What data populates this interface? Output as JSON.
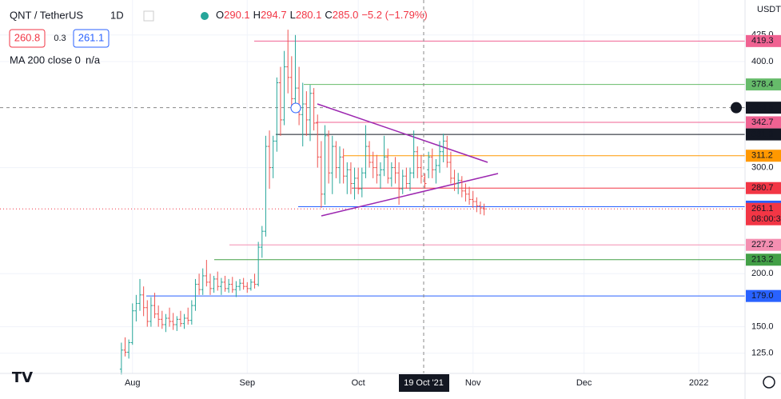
{
  "header": {
    "symbol": "QNT / TetherUS",
    "interval": "1D",
    "ohlc": [
      {
        "label": "O",
        "value": "290.1"
      },
      {
        "label": "H",
        "value": "294.7"
      },
      {
        "label": "L",
        "value": "280.1"
      },
      {
        "label": "C",
        "value": "285.0"
      }
    ],
    "change": "−5.2 (−1.79%)",
    "sell": "260.8",
    "spread": "0.3",
    "buy": "261.1",
    "indicator": "MA 200 close 0",
    "indicator_value": "n/a"
  },
  "chart_data": {
    "type": "ohlc",
    "currency": "USDT",
    "up_color": "#26a69a",
    "down_color": "#ef5350",
    "open": [
      110,
      128,
      126,
      135,
      165,
      172,
      180,
      168,
      155,
      170,
      162,
      157,
      152,
      158,
      155,
      152,
      157,
      153,
      158,
      156,
      170,
      190,
      185,
      198,
      192,
      186,
      195,
      188,
      192,
      186,
      190,
      185,
      188,
      191,
      188,
      186,
      192,
      190,
      225,
      240,
      320,
      300,
      325,
      380,
      345,
      395,
      385,
      365,
      375,
      350,
      360,
      345,
      370,
      342,
      310,
      275,
      330,
      295,
      320,
      300,
      310,
      292,
      298,
      285,
      290,
      280,
      295,
      320,
      305,
      300,
      293,
      298,
      310,
      290,
      300,
      295,
      280,
      292,
      285,
      295,
      315,
      300,
      290.1,
      298,
      310,
      298,
      302,
      315,
      325,
      305,
      290,
      285,
      288,
      278,
      275,
      270,
      268,
      264,
      262
    ],
    "high": [
      135,
      140,
      138,
      172,
      180,
      195,
      188,
      175,
      178,
      182,
      170,
      165,
      162,
      168,
      163,
      160,
      165,
      162,
      168,
      175,
      195,
      200,
      205,
      213,
      200,
      198,
      202,
      196,
      198,
      195,
      197,
      193,
      195,
      196,
      192,
      195,
      200,
      230,
      245,
      330,
      335,
      330,
      385,
      395,
      410,
      430,
      405,
      425,
      395,
      380,
      372,
      378,
      375,
      350,
      325,
      340,
      335,
      330,
      325,
      320,
      318,
      305,
      305,
      300,
      300,
      300,
      340,
      325,
      315,
      312,
      305,
      330,
      318,
      305,
      310,
      305,
      298,
      300,
      300,
      335,
      320,
      312,
      294.7,
      315,
      318,
      308,
      325,
      332,
      330,
      315,
      298,
      295,
      292,
      285,
      282,
      278,
      272,
      268,
      266
    ],
    "low": [
      105,
      122,
      120,
      133,
      155,
      165,
      160,
      150,
      150,
      158,
      150,
      148,
      145,
      150,
      147,
      146,
      150,
      148,
      152,
      152,
      165,
      180,
      180,
      188,
      180,
      182,
      184,
      180,
      183,
      182,
      182,
      178,
      184,
      185,
      182,
      184,
      186,
      188,
      215,
      235,
      280,
      290,
      315,
      330,
      340,
      370,
      355,
      355,
      340,
      320,
      330,
      325,
      335,
      300,
      262,
      265,
      285,
      275,
      290,
      285,
      285,
      275,
      275,
      270,
      275,
      272,
      290,
      300,
      290,
      285,
      280,
      292,
      285,
      282,
      285,
      265,
      275,
      280,
      278,
      290,
      290,
      285,
      280.1,
      290,
      290,
      285,
      295,
      305,
      300,
      285,
      278,
      275,
      272,
      268,
      265,
      262,
      258,
      256,
      255
    ],
    "close": [
      128,
      126,
      135,
      165,
      172,
      180,
      168,
      155,
      170,
      162,
      157,
      152,
      158,
      155,
      152,
      157,
      153,
      158,
      156,
      170,
      190,
      185,
      198,
      192,
      186,
      195,
      188,
      192,
      186,
      190,
      185,
      188,
      191,
      188,
      186,
      192,
      190,
      225,
      240,
      320,
      300,
      325,
      380,
      345,
      395,
      385,
      365,
      375,
      350,
      360,
      345,
      370,
      342,
      310,
      275,
      330,
      295,
      320,
      300,
      310,
      292,
      298,
      285,
      290,
      280,
      295,
      320,
      305,
      300,
      293,
      298,
      310,
      290,
      300,
      295,
      280,
      292,
      285,
      295,
      315,
      300,
      292,
      285.0,
      310,
      298,
      302,
      315,
      325,
      305,
      290,
      285,
      288,
      278,
      275,
      270,
      268,
      264,
      262,
      261.1
    ],
    "xlim": [
      -32.8,
      168.5
    ],
    "ylim": [
      106,
      458
    ],
    "xticks": [
      {
        "value": 3,
        "label": "Aug"
      },
      {
        "value": 34,
        "label": "Sep"
      },
      {
        "value": 64,
        "label": "Oct"
      },
      {
        "value": 95,
        "label": "Nov"
      },
      {
        "value": 125,
        "label": "Dec"
      },
      {
        "value": 156,
        "label": "2022"
      }
    ],
    "yticks": [
      {
        "value": 125,
        "label": "125.0"
      },
      {
        "value": 150,
        "label": "150.0"
      },
      {
        "value": 200,
        "label": "200.0"
      },
      {
        "value": 300,
        "label": "300.0"
      },
      {
        "value": 400,
        "label": "400.0"
      },
      {
        "value": 425,
        "label": "425.0"
      }
    ],
    "levels": [
      {
        "value": 419.3,
        "color": "#f06292"
      },
      {
        "value": 378.4,
        "color": "#66bb6a"
      },
      {
        "value": 342.7,
        "color": "#f06292"
      },
      {
        "value": 331.3,
        "color": "#131722"
      },
      {
        "value": 311.2,
        "color": "#ff9800"
      },
      {
        "value": 280.7,
        "color": "#f23645"
      },
      {
        "value": 263.2,
        "color": "#2962ff"
      },
      {
        "value": 261.1,
        "color": "#f23645",
        "countdown": "08:00:3"
      },
      {
        "value": 227.2,
        "color": "#f48fb1"
      },
      {
        "value": 213.2,
        "color": "#43a047"
      },
      {
        "value": 179.0,
        "label": "179.0",
        "color": "#2962ff"
      }
    ],
    "crosshair": {
      "value": 356.5,
      "x_label": "19 Oct '21"
    }
  }
}
